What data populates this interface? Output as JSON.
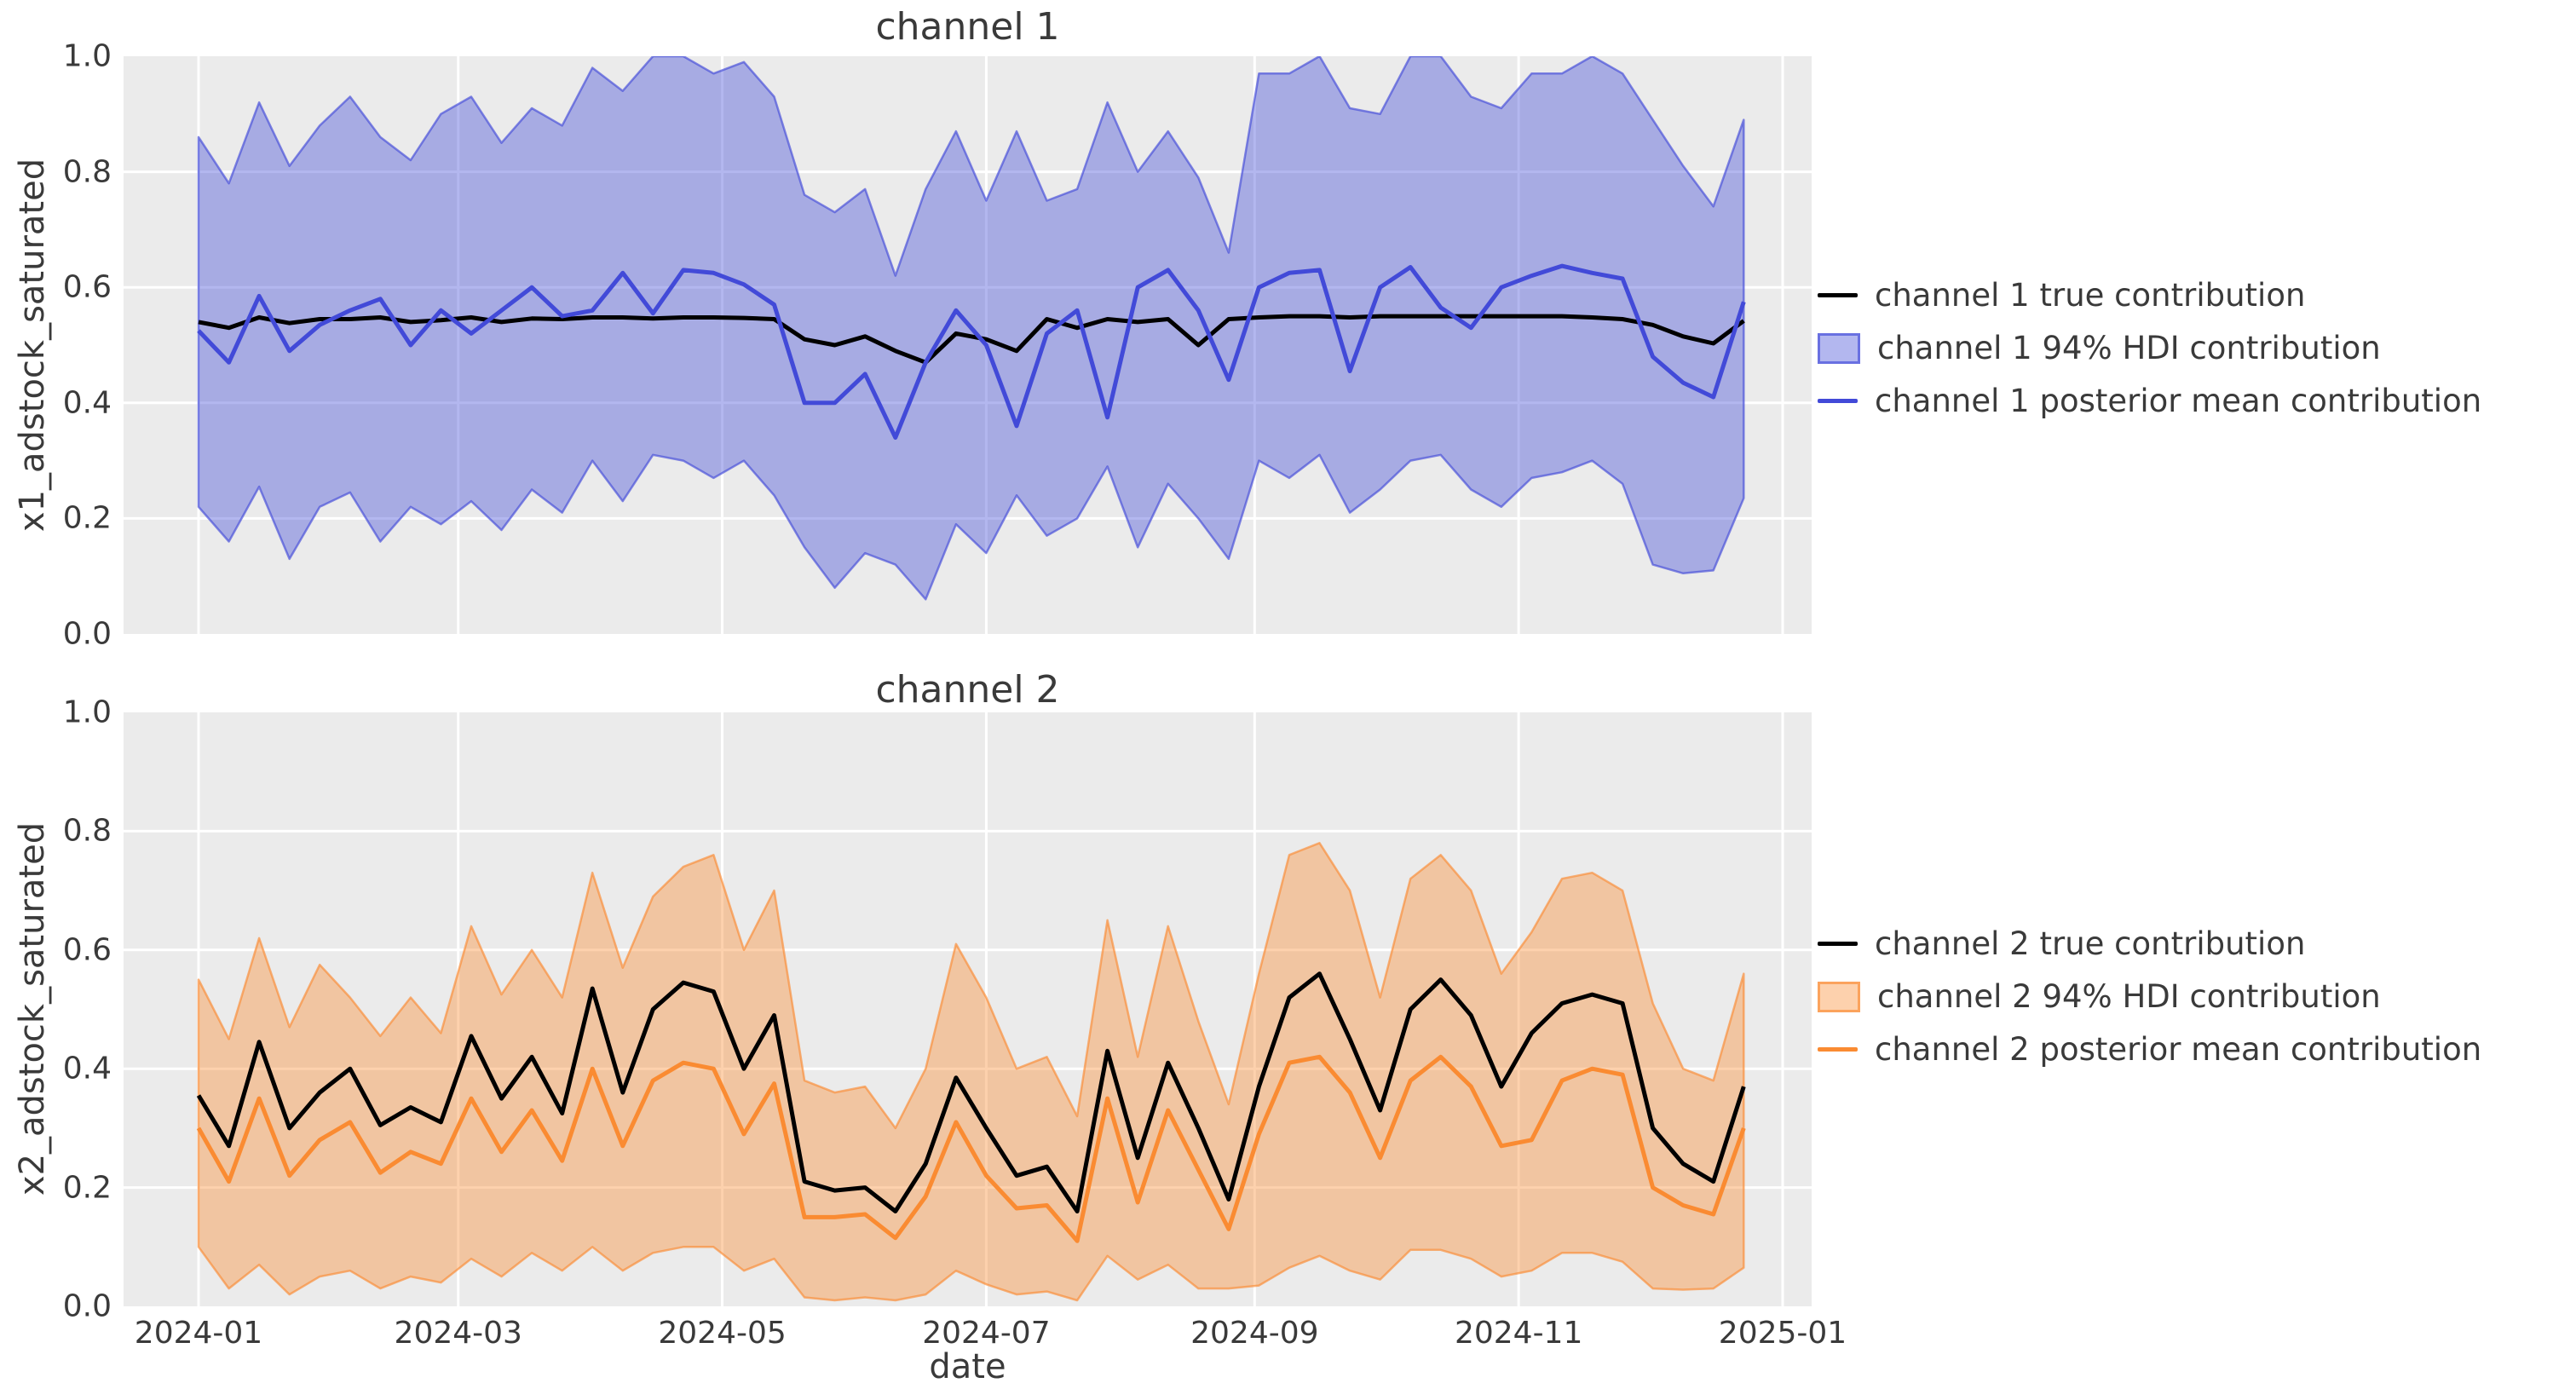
{
  "style": {
    "figure_background": "#ffffff",
    "axes_background": "#ebebeb",
    "grid_color": "#ffffff",
    "text_color": "#3a3a3a",
    "channel1_color": "#424ad8",
    "channel2_color": "#fa8b32",
    "true_line_color": "#000000"
  },
  "xaxis": {
    "label": "date",
    "ticks": [
      "2024-01",
      "2024-03",
      "2024-05",
      "2024-07",
      "2024-09",
      "2024-11",
      "2025-01"
    ]
  },
  "yaxis": {
    "ticks": [
      "0.0",
      "0.2",
      "0.4",
      "0.6",
      "0.8",
      "1.0"
    ]
  },
  "chart_data": [
    {
      "type": "line",
      "title": "channel 1",
      "ylabel": "x1_adstock_saturated",
      "xlabel": "date",
      "ylim": [
        0.0,
        1.0
      ],
      "grid": true,
      "legend_position": "right-outside",
      "x_dates": [
        "2024-01-01",
        "2024-01-08",
        "2024-01-15",
        "2024-01-22",
        "2024-01-29",
        "2024-02-05",
        "2024-02-12",
        "2024-02-19",
        "2024-02-26",
        "2024-03-04",
        "2024-03-11",
        "2024-03-18",
        "2024-03-25",
        "2024-04-01",
        "2024-04-08",
        "2024-04-15",
        "2024-04-22",
        "2024-04-29",
        "2024-05-06",
        "2024-05-13",
        "2024-05-20",
        "2024-05-27",
        "2024-06-03",
        "2024-06-10",
        "2024-06-17",
        "2024-06-24",
        "2024-07-01",
        "2024-07-08",
        "2024-07-15",
        "2024-07-22",
        "2024-07-29",
        "2024-08-05",
        "2024-08-12",
        "2024-08-19",
        "2024-08-26",
        "2024-09-02",
        "2024-09-09",
        "2024-09-16",
        "2024-09-23",
        "2024-09-30",
        "2024-10-07",
        "2024-10-14",
        "2024-10-21",
        "2024-10-28",
        "2024-11-04",
        "2024-11-11",
        "2024-11-18",
        "2024-11-25",
        "2024-12-02",
        "2024-12-09",
        "2024-12-16",
        "2024-12-23"
      ],
      "series": [
        {
          "name": "channel 1 true contribution",
          "kind": "line",
          "color": "#000000",
          "values": [
            0.54,
            0.53,
            0.548,
            0.538,
            0.545,
            0.545,
            0.548,
            0.54,
            0.543,
            0.548,
            0.54,
            0.546,
            0.545,
            0.548,
            0.548,
            0.546,
            0.548,
            0.548,
            0.547,
            0.545,
            0.51,
            0.5,
            0.515,
            0.49,
            0.47,
            0.52,
            0.51,
            0.49,
            0.545,
            0.53,
            0.545,
            0.54,
            0.545,
            0.5,
            0.545,
            0.548,
            0.55,
            0.55,
            0.548,
            0.55,
            0.55,
            0.55,
            0.55,
            0.55,
            0.55,
            0.55,
            0.548,
            0.545,
            0.535,
            0.515,
            0.503,
            0.542
          ]
        },
        {
          "name": "channel 1 94% HDI contribution",
          "kind": "band",
          "color": "#424ad8",
          "fill_alpha": 0.4,
          "low": [
            0.22,
            0.16,
            0.255,
            0.13,
            0.22,
            0.245,
            0.16,
            0.22,
            0.19,
            0.23,
            0.18,
            0.25,
            0.21,
            0.3,
            0.23,
            0.31,
            0.3,
            0.27,
            0.3,
            0.24,
            0.15,
            0.08,
            0.14,
            0.12,
            0.06,
            0.19,
            0.14,
            0.24,
            0.17,
            0.2,
            0.29,
            0.15,
            0.26,
            0.2,
            0.13,
            0.3,
            0.27,
            0.31,
            0.21,
            0.25,
            0.3,
            0.31,
            0.25,
            0.22,
            0.27,
            0.28,
            0.3,
            0.26,
            0.12,
            0.105,
            0.11,
            0.235
          ],
          "high": [
            0.86,
            0.78,
            0.92,
            0.81,
            0.88,
            0.93,
            0.86,
            0.82,
            0.9,
            0.93,
            0.85,
            0.91,
            0.88,
            0.98,
            0.94,
            1.0,
            1.0,
            0.97,
            0.99,
            0.93,
            0.76,
            0.73,
            0.77,
            0.62,
            0.77,
            0.87,
            0.75,
            0.87,
            0.75,
            0.77,
            0.92,
            0.8,
            0.87,
            0.79,
            0.66,
            0.97,
            0.97,
            1.0,
            0.91,
            0.9,
            1.0,
            1.0,
            0.93,
            0.91,
            0.97,
            0.97,
            1.0,
            0.97,
            0.89,
            0.81,
            0.74,
            0.89
          ]
        },
        {
          "name": "channel 1 posterior mean contribution",
          "kind": "line",
          "color": "#424ad8",
          "values": [
            0.525,
            0.47,
            0.585,
            0.49,
            0.535,
            0.56,
            0.58,
            0.5,
            0.56,
            0.52,
            0.56,
            0.6,
            0.55,
            0.56,
            0.625,
            0.555,
            0.63,
            0.625,
            0.605,
            0.57,
            0.4,
            0.4,
            0.45,
            0.34,
            0.47,
            0.56,
            0.5,
            0.36,
            0.52,
            0.56,
            0.375,
            0.6,
            0.63,
            0.56,
            0.44,
            0.6,
            0.625,
            0.63,
            0.455,
            0.6,
            0.635,
            0.565,
            0.53,
            0.6,
            0.62,
            0.637,
            0.625,
            0.615,
            0.48,
            0.435,
            0.41,
            0.575
          ]
        }
      ]
    },
    {
      "type": "line",
      "title": "channel 2",
      "ylabel": "x2_adstock_saturated",
      "xlabel": "date",
      "ylim": [
        0.0,
        1.0
      ],
      "grid": true,
      "legend_position": "right-outside",
      "x_dates": [
        "2024-01-01",
        "2024-01-08",
        "2024-01-15",
        "2024-01-22",
        "2024-01-29",
        "2024-02-05",
        "2024-02-12",
        "2024-02-19",
        "2024-02-26",
        "2024-03-04",
        "2024-03-11",
        "2024-03-18",
        "2024-03-25",
        "2024-04-01",
        "2024-04-08",
        "2024-04-15",
        "2024-04-22",
        "2024-04-29",
        "2024-05-06",
        "2024-05-13",
        "2024-05-20",
        "2024-05-27",
        "2024-06-03",
        "2024-06-10",
        "2024-06-17",
        "2024-06-24",
        "2024-07-01",
        "2024-07-08",
        "2024-07-15",
        "2024-07-22",
        "2024-07-29",
        "2024-08-05",
        "2024-08-12",
        "2024-08-19",
        "2024-08-26",
        "2024-09-02",
        "2024-09-09",
        "2024-09-16",
        "2024-09-23",
        "2024-09-30",
        "2024-10-07",
        "2024-10-14",
        "2024-10-21",
        "2024-10-28",
        "2024-11-04",
        "2024-11-11",
        "2024-11-18",
        "2024-11-25",
        "2024-12-02",
        "2024-12-09",
        "2024-12-16",
        "2024-12-23"
      ],
      "series": [
        {
          "name": "channel 2 true contribution",
          "kind": "line",
          "color": "#000000",
          "values": [
            0.355,
            0.27,
            0.445,
            0.3,
            0.36,
            0.4,
            0.305,
            0.335,
            0.31,
            0.455,
            0.35,
            0.42,
            0.325,
            0.535,
            0.36,
            0.5,
            0.545,
            0.53,
            0.4,
            0.49,
            0.21,
            0.195,
            0.2,
            0.16,
            0.24,
            0.385,
            0.3,
            0.22,
            0.235,
            0.16,
            0.43,
            0.25,
            0.41,
            0.3,
            0.18,
            0.37,
            0.52,
            0.56,
            0.45,
            0.33,
            0.5,
            0.55,
            0.49,
            0.37,
            0.46,
            0.51,
            0.525,
            0.51,
            0.3,
            0.24,
            0.21,
            0.37
          ]
        },
        {
          "name": "channel 2 94% HDI contribution",
          "kind": "band",
          "color": "#fa8b32",
          "fill_alpha": 0.4,
          "low": [
            0.1,
            0.03,
            0.07,
            0.02,
            0.05,
            0.06,
            0.03,
            0.05,
            0.04,
            0.08,
            0.05,
            0.09,
            0.06,
            0.1,
            0.06,
            0.09,
            0.1,
            0.1,
            0.06,
            0.08,
            0.015,
            0.01,
            0.015,
            0.01,
            0.02,
            0.06,
            0.037,
            0.02,
            0.025,
            0.01,
            0.085,
            0.045,
            0.07,
            0.03,
            0.03,
            0.035,
            0.065,
            0.085,
            0.06,
            0.045,
            0.095,
            0.095,
            0.08,
            0.05,
            0.06,
            0.09,
            0.09,
            0.075,
            0.03,
            0.028,
            0.03,
            0.065
          ],
          "high": [
            0.55,
            0.45,
            0.62,
            0.47,
            0.575,
            0.52,
            0.455,
            0.52,
            0.46,
            0.64,
            0.525,
            0.6,
            0.52,
            0.73,
            0.57,
            0.69,
            0.74,
            0.76,
            0.6,
            0.7,
            0.38,
            0.36,
            0.37,
            0.3,
            0.4,
            0.61,
            0.52,
            0.4,
            0.42,
            0.32,
            0.65,
            0.42,
            0.64,
            0.48,
            0.34,
            0.56,
            0.76,
            0.78,
            0.7,
            0.52,
            0.72,
            0.76,
            0.7,
            0.56,
            0.63,
            0.72,
            0.73,
            0.7,
            0.51,
            0.4,
            0.38,
            0.56
          ]
        },
        {
          "name": "channel 2 posterior mean contribution",
          "kind": "line",
          "color": "#fa8b32",
          "values": [
            0.3,
            0.21,
            0.35,
            0.22,
            0.28,
            0.31,
            0.225,
            0.26,
            0.24,
            0.35,
            0.26,
            0.33,
            0.245,
            0.4,
            0.27,
            0.38,
            0.41,
            0.4,
            0.29,
            0.375,
            0.15,
            0.15,
            0.155,
            0.115,
            0.185,
            0.31,
            0.22,
            0.165,
            0.17,
            0.11,
            0.35,
            0.175,
            0.33,
            0.23,
            0.13,
            0.29,
            0.41,
            0.42,
            0.36,
            0.25,
            0.38,
            0.42,
            0.37,
            0.27,
            0.28,
            0.38,
            0.4,
            0.39,
            0.2,
            0.17,
            0.155,
            0.3
          ]
        }
      ]
    }
  ]
}
